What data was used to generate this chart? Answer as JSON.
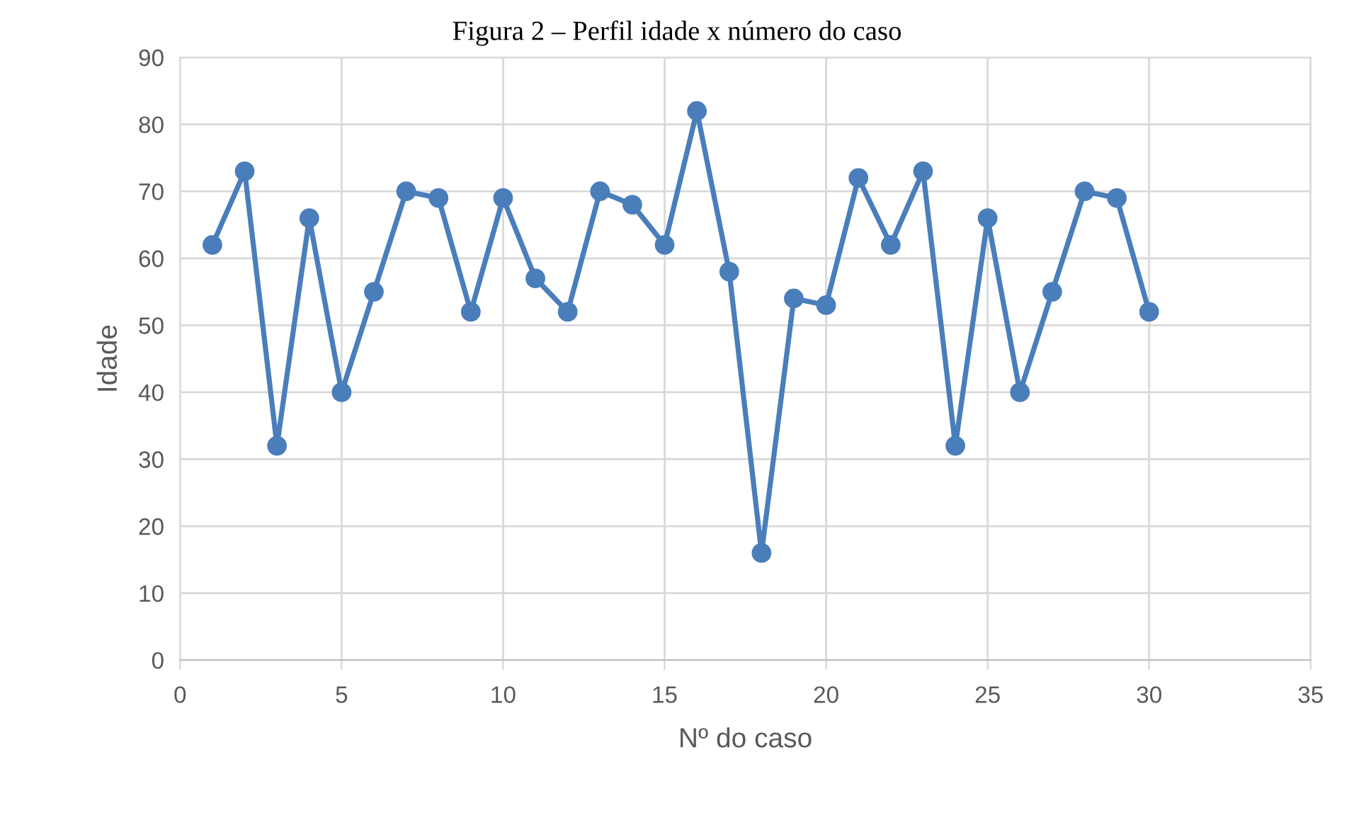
{
  "chart_data": {
    "type": "line",
    "title": "Figura 2 – Perfil idade x número do caso",
    "xlabel": "Nº do caso",
    "ylabel": "Idade",
    "x": [
      1,
      2,
      3,
      4,
      5,
      6,
      7,
      8,
      9,
      10,
      11,
      12,
      13,
      14,
      15,
      16,
      17,
      18,
      19,
      20,
      21,
      22,
      23,
      24,
      25,
      26,
      27,
      28,
      29,
      30
    ],
    "series": [
      {
        "color": "#4a7ebb",
        "values": [
          62,
          73,
          32,
          66,
          40,
          55,
          70,
          69,
          52,
          69,
          57,
          52,
          70,
          68,
          62,
          82,
          58,
          16,
          54,
          53,
          72,
          62,
          73,
          32,
          66,
          40,
          55,
          70,
          69,
          52
        ]
      }
    ],
    "xlim": [
      0,
      35
    ],
    "xticks": [
      0,
      5,
      10,
      15,
      20,
      25,
      30,
      35
    ],
    "ylim": [
      0,
      90
    ],
    "yticks": [
      0,
      10,
      20,
      30,
      40,
      50,
      60,
      70,
      80,
      90
    ],
    "grid": true,
    "marker": "circle",
    "line_style": "solid"
  }
}
